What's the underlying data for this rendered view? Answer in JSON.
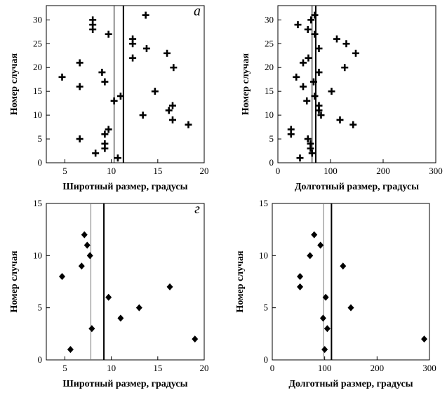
{
  "chart_data": [
    {
      "type": "scatter",
      "marker": "plus",
      "color": "#000000",
      "annotation": "а",
      "xlabel": "Широтный размер, градусы",
      "ylabel": "Номер случая",
      "xlim": [
        3,
        20
      ],
      "xticks": [
        5,
        10,
        15,
        20
      ],
      "ylim": [
        0,
        33
      ],
      "yticks": [
        0,
        5,
        10,
        15,
        20,
        25,
        30
      ],
      "vlines": [
        10.3,
        11.3
      ],
      "x": [
        8,
        8,
        8,
        9.7,
        12.3,
        12.3,
        13.7,
        13.8,
        16,
        12.3,
        6.6,
        16.7,
        9,
        4.7,
        9.3,
        6.6,
        14.7,
        11,
        10.3,
        16.6,
        16.2,
        13.4,
        16.6,
        18.3,
        9.7,
        9.3,
        6.6,
        9.3,
        9.3,
        8.3,
        10.7
      ],
      "y": [
        30,
        29,
        28,
        27,
        26,
        25,
        31,
        24,
        23,
        22,
        21,
        20,
        19,
        18,
        17,
        16,
        15,
        14,
        13,
        12,
        11,
        10,
        9,
        8,
        7,
        6,
        5,
        4,
        3,
        2,
        1
      ]
    },
    {
      "type": "scatter",
      "marker": "plus",
      "color": "#000000",
      "xlabel": "Долготный размер, градусы",
      "ylabel": "Номер случая",
      "xlim": [
        0,
        300
      ],
      "xticks": [
        0,
        100,
        200,
        300
      ],
      "ylim": [
        0,
        33
      ],
      "yticks": [
        0,
        5,
        10,
        15,
        20,
        25,
        30
      ],
      "vlines": [
        65,
        72
      ],
      "x": [
        63,
        70,
        38,
        57,
        70,
        112,
        130,
        78,
        148,
        58,
        48,
        127,
        78,
        35,
        68,
        48,
        102,
        70,
        55,
        78,
        78,
        82,
        118,
        143,
        25,
        25,
        57,
        62,
        62,
        65,
        42
      ],
      "y": [
        30,
        31,
        29,
        28,
        27,
        26,
        25,
        24,
        23,
        22,
        21,
        20,
        19,
        18,
        17,
        16,
        15,
        14,
        13,
        12,
        11,
        10,
        9,
        8,
        7,
        6,
        5,
        4,
        3,
        2,
        1
      ]
    },
    {
      "type": "scatter",
      "marker": "diamond",
      "color": "#000000",
      "annotation": "г",
      "xlabel": "Широтный размер, градусы",
      "ylabel": "Номер случая",
      "xlim": [
        3,
        20
      ],
      "xticks": [
        5,
        10,
        15,
        20
      ],
      "ylim": [
        0,
        15
      ],
      "yticks": [
        0,
        5,
        10,
        15
      ],
      "vlines": [
        7.8,
        9.2
      ],
      "x": [
        7.1,
        7.4,
        7.7,
        6.8,
        4.7,
        16.3,
        9.7,
        13,
        11,
        7.9,
        19,
        5.6
      ],
      "y": [
        12,
        11,
        10,
        9,
        8,
        7,
        6,
        5,
        4,
        3,
        2,
        1
      ]
    },
    {
      "type": "scatter",
      "marker": "diamond",
      "color": "#000000",
      "xlabel": "Долготный размер, градусы",
      "ylabel": "Номер случая",
      "xlim": [
        0,
        300
      ],
      "xticks": [
        0,
        100,
        200,
        300
      ],
      "ylim": [
        0,
        15
      ],
      "yticks": [
        0,
        5,
        10,
        15
      ],
      "vlines": [
        98,
        113
      ],
      "x": [
        80,
        92,
        72,
        135,
        53,
        53,
        102,
        150,
        97,
        105,
        290,
        100
      ],
      "y": [
        12,
        11,
        10,
        9,
        8,
        7,
        6,
        5,
        4,
        3,
        2,
        1
      ]
    }
  ]
}
